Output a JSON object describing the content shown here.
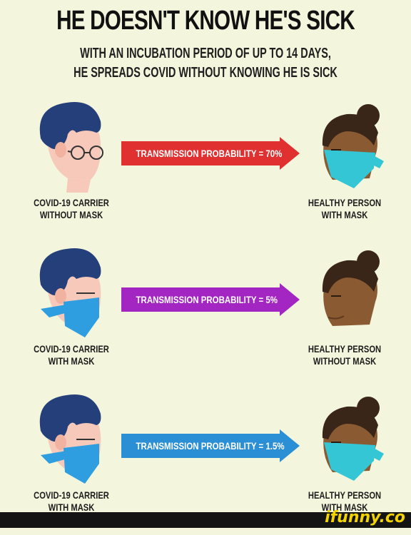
{
  "title": "HE DOESN'T KNOW HE'S SICK",
  "subtitle_line1": "WITH AN INCUBATION PERIOD OF UP TO 14 DAYS,",
  "subtitle_line2": "HE SPREADS COVID WITHOUT KNOWING HE IS SICK",
  "rows": [
    {
      "arrow_text": "TRANSMISSION PROBABILITY = 70%",
      "arrow_color": "#e0302f",
      "left_label_1": "COVID-19 CARRIER",
      "left_label_2": "WITHOUT MASK",
      "right_label_1": "HEALTHY PERSON",
      "right_label_2": "WITH MASK"
    },
    {
      "arrow_text": "TRANSMISSION PROBABILITY = 5%",
      "arrow_color": "#a326c2",
      "left_label_1": "COVID-19 CARRIER",
      "left_label_2": "WITH MASK",
      "right_label_1": "HEALTHY PERSON",
      "right_label_2": "WITHOUT MASK"
    },
    {
      "arrow_text": "TRANSMISSION PROBABILITY = 1.5%",
      "arrow_color": "#2b8fd6",
      "left_label_1": "COVID-19 CARRIER",
      "left_label_2": "WITH MASK",
      "right_label_1": "HEALTHY PERSON",
      "right_label_2": "WITH MASK"
    }
  ],
  "watermark": "ifunny.co",
  "colors": {
    "background": "#f3f5dc",
    "man_hair": "#243f7a",
    "man_skin": "#f6c9ba",
    "woman_hair": "#3a2618",
    "woman_skin": "#8a5a33",
    "mask": "#35c6d6",
    "blue_mask": "#2e9ee0"
  }
}
